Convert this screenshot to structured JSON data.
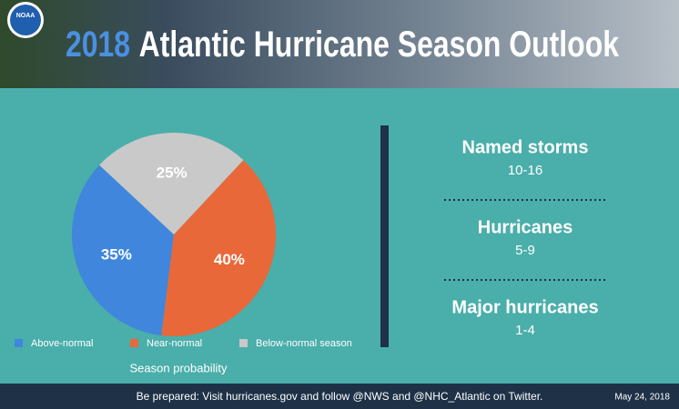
{
  "header": {
    "logo": "NOAA",
    "year": "2018",
    "title": "Atlantic Hurricane Season Outlook"
  },
  "chart_data": {
    "type": "pie",
    "categories": [
      "Above-normal",
      "Near-normal",
      "Below-normal season"
    ],
    "values": [
      35,
      40,
      25
    ],
    "value_labels": [
      "35%",
      "40%",
      "25%"
    ],
    "colors": [
      "#3f86dc",
      "#e8683a",
      "#c9c9c9"
    ],
    "caption": "Season probability"
  },
  "stats": [
    {
      "label": "Named storms",
      "value": "10-16"
    },
    {
      "label": "Hurricanes",
      "value": "5-9"
    },
    {
      "label": "Major hurricanes",
      "value": "1-4"
    }
  ],
  "footer": {
    "message": "Be prepared: Visit hurricanes.gov and follow @NWS and @NHC_Atlantic on Twitter.",
    "date": "May 24, 2018"
  }
}
